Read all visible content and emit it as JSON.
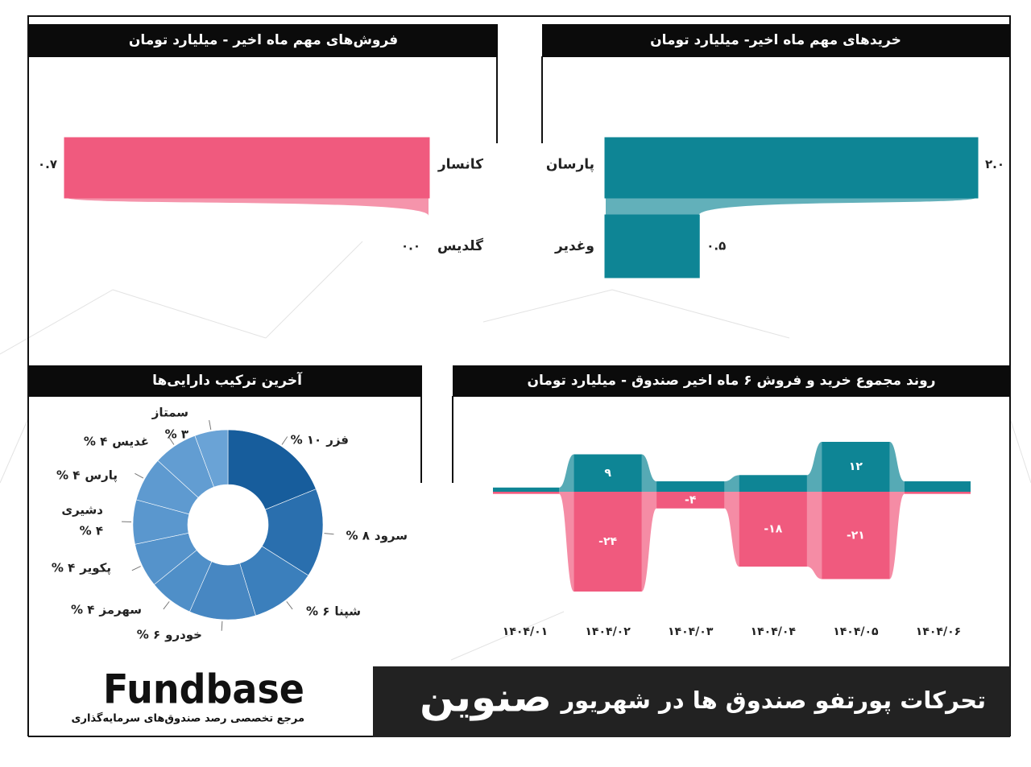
{
  "chart_data": [
    {
      "type": "hbar",
      "title": "فروش‌های مهم ماه اخیر - میلیارد تومان",
      "categories": [
        "کانسار",
        "گلدیس"
      ],
      "values": [
        0.7,
        0.0
      ],
      "value_labels": [
        "۰.۷",
        "۰.۰"
      ],
      "color": "#f05a7e"
    },
    {
      "type": "hbar",
      "title": "خریدهای مهم ماه اخیر- میلیارد تومان",
      "categories": [
        "پارسان",
        "وغدیر"
      ],
      "values": [
        2.0,
        0.5
      ],
      "value_labels": [
        "۲.۰",
        "۰.۵"
      ],
      "color": "#0e8595"
    },
    {
      "type": "stream",
      "title": "روند مجموع خرید و فروش ۶ ماه اخیر صندوق - میلیارد تومان",
      "categories": [
        "۱۴۰۴/۰۱",
        "۱۴۰۴/۰۲",
        "۱۴۰۴/۰۳",
        "۱۴۰۴/۰۴",
        "۱۴۰۴/۰۵",
        "۱۴۰۴/۰۶"
      ],
      "series": [
        {
          "color": "#0e8595",
          "values": [
            1,
            9,
            2.5,
            4,
            12,
            2.5
          ],
          "value_labels": [
            null,
            "۹",
            null,
            null,
            "۱۲",
            null
          ]
        },
        {
          "color": "#f05a7e",
          "values": [
            -0.5,
            -24,
            -4,
            -18,
            -21,
            -0.5
          ],
          "value_labels": [
            null,
            "-۲۴",
            "-۴",
            "-۱۸",
            "-۲۱",
            null
          ]
        }
      ]
    },
    {
      "type": "donut",
      "title": "آخرین ترکیب دارایی‌ها",
      "categories": [
        "فزر",
        "سرود",
        "شپنا",
        "خودرو",
        "سهرمز",
        "پکویر",
        "دشیری",
        "پارس",
        "غدیس",
        "سمتاز"
      ],
      "values": [
        10,
        8,
        6,
        6,
        4,
        4,
        4,
        4,
        4,
        3
      ],
      "value_labels": [
        "% ۱۰",
        "% ۸",
        "% ۶",
        "% ۶",
        "% ۴",
        "% ۴",
        "% ۴",
        "% ۴",
        "% ۴",
        "% ۳"
      ],
      "colors": [
        "#175d9c",
        "#2a6fae",
        "#3b7fbc",
        "#4787c2",
        "#4f8fc8",
        "#5593cb",
        "#5a97ce",
        "#5e9ad0",
        "#629dd2",
        "#6aa3d6"
      ]
    }
  ],
  "footer": {
    "title": "تحرکات پورتفو صندوق ها در شهریور",
    "fund": "صنوین",
    "brand": "Fundbase",
    "tagline": "مرجع تخصصی رصد صندوق‌های سرمایه‌گذاری"
  }
}
